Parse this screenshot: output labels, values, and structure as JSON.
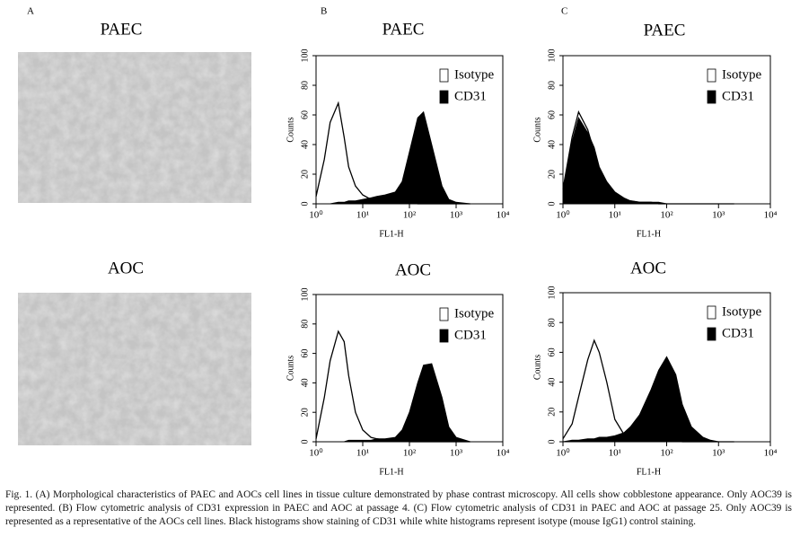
{
  "panel_labels": [
    "A",
    "B",
    "C"
  ],
  "micrographs": [
    {
      "title": "PAEC"
    },
    {
      "title": "AOC"
    }
  ],
  "chart_data": [
    {
      "type": "area",
      "title": "PAEC",
      "x_label": "FL1-H",
      "y_label": "Counts",
      "log_x": true,
      "xlim": [
        1,
        10000
      ],
      "ylim": [
        0,
        100
      ],
      "xticks": [
        {
          "value": 1,
          "label": "10⁰"
        },
        {
          "value": 10,
          "label": "10¹"
        },
        {
          "value": 100,
          "label": "10²"
        },
        {
          "value": 1000,
          "label": "10³"
        },
        {
          "value": 10000,
          "label": "10⁴"
        }
      ],
      "yticks": [
        0,
        20,
        40,
        60,
        80,
        100
      ],
      "legend": "upper right",
      "x": [
        1,
        1.5,
        2,
        3,
        4,
        5,
        7,
        10,
        15,
        20,
        30,
        50,
        70,
        100,
        150,
        200,
        300,
        500,
        700,
        1000,
        2000
      ],
      "series": [
        {
          "name": "Isotype",
          "color": "#ffffff",
          "values": [
            5,
            30,
            55,
            68,
            45,
            25,
            12,
            6,
            3,
            2,
            2,
            1,
            1,
            1,
            0,
            0,
            0,
            0,
            0,
            0,
            0
          ]
        },
        {
          "name": "CD31",
          "color": "#000000",
          "values": [
            0,
            0,
            0,
            1,
            1,
            2,
            2,
            3,
            4,
            5,
            6,
            8,
            15,
            35,
            58,
            62,
            40,
            12,
            3,
            1,
            0
          ]
        }
      ]
    },
    {
      "type": "area",
      "title": "AOC",
      "x_label": "FL1-H",
      "y_label": "Counts",
      "log_x": true,
      "xlim": [
        1,
        10000
      ],
      "ylim": [
        0,
        100
      ],
      "xticks": [
        {
          "value": 1,
          "label": "10⁰"
        },
        {
          "value": 10,
          "label": "10¹"
        },
        {
          "value": 100,
          "label": "10²"
        },
        {
          "value": 1000,
          "label": "10³"
        },
        {
          "value": 10000,
          "label": "10⁴"
        }
      ],
      "yticks": [
        0,
        20,
        40,
        60,
        80,
        100
      ],
      "legend": "upper right",
      "x": [
        1,
        1.5,
        2,
        3,
        4,
        5,
        7,
        10,
        15,
        20,
        30,
        50,
        70,
        100,
        150,
        200,
        300,
        500,
        700,
        1000,
        2000
      ],
      "series": [
        {
          "name": "Isotype",
          "color": "#ffffff",
          "values": [
            2,
            30,
            55,
            75,
            68,
            45,
            20,
            8,
            3,
            2,
            1,
            1,
            1,
            0,
            0,
            0,
            0,
            0,
            0,
            0,
            0
          ]
        },
        {
          "name": "CD31",
          "color": "#000000",
          "values": [
            0,
            0,
            0,
            0,
            0,
            1,
            1,
            1,
            1,
            2,
            2,
            3,
            8,
            20,
            40,
            52,
            53,
            30,
            10,
            3,
            0
          ]
        }
      ]
    },
    {
      "type": "area",
      "title": "PAEC",
      "x_label": "FL1-H",
      "y_label": "Counts",
      "log_x": true,
      "xlim": [
        1,
        10000
      ],
      "ylim": [
        0,
        100
      ],
      "xticks": [
        {
          "value": 1,
          "label": "10⁰"
        },
        {
          "value": 10,
          "label": "10¹"
        },
        {
          "value": 100,
          "label": "10²"
        },
        {
          "value": 1000,
          "label": "10³"
        },
        {
          "value": 10000,
          "label": "10⁴"
        }
      ],
      "yticks": [
        0,
        20,
        40,
        60,
        80,
        100
      ],
      "legend": "upper right",
      "x": [
        1,
        1.5,
        2,
        3,
        4,
        5,
        7,
        10,
        15,
        20,
        30,
        50,
        70,
        100,
        150,
        200,
        300,
        500,
        700,
        1000,
        2000
      ],
      "series": [
        {
          "name": "Isotype",
          "color": "#ffffff",
          "values": [
            10,
            45,
            62,
            50,
            35,
            22,
            12,
            6,
            3,
            2,
            1,
            1,
            0,
            0,
            0,
            0,
            0,
            0,
            0,
            0,
            0
          ]
        },
        {
          "name": "CD31",
          "color": "#000000",
          "values": [
            10,
            42,
            58,
            48,
            38,
            25,
            15,
            8,
            4,
            2,
            1,
            1,
            1,
            0,
            0,
            0,
            0,
            0,
            0,
            0,
            0
          ]
        }
      ]
    },
    {
      "type": "area",
      "title": "AOC",
      "x_label": "FL1-H",
      "y_label": "Counts",
      "log_x": true,
      "xlim": [
        1,
        10000
      ],
      "ylim": [
        0,
        100
      ],
      "xticks": [
        {
          "value": 1,
          "label": "10⁰"
        },
        {
          "value": 10,
          "label": "10¹"
        },
        {
          "value": 100,
          "label": "10²"
        },
        {
          "value": 1000,
          "label": "10³"
        },
        {
          "value": 10000,
          "label": "10⁴"
        }
      ],
      "yticks": [
        0,
        20,
        40,
        60,
        80,
        100
      ],
      "legend": "upper right",
      "x": [
        1,
        1.5,
        2,
        3,
        4,
        5,
        7,
        10,
        15,
        20,
        30,
        50,
        70,
        100,
        150,
        200,
        300,
        500,
        700,
        1000,
        2000
      ],
      "series": [
        {
          "name": "Isotype",
          "color": "#ffffff",
          "values": [
            2,
            12,
            30,
            55,
            68,
            60,
            40,
            15,
            5,
            3,
            2,
            2,
            2,
            1,
            1,
            0,
            0,
            0,
            0,
            0,
            0
          ]
        },
        {
          "name": "CD31",
          "color": "#000000",
          "values": [
            0,
            1,
            1,
            2,
            2,
            3,
            3,
            4,
            6,
            10,
            18,
            35,
            48,
            57,
            45,
            25,
            10,
            3,
            1,
            0,
            0
          ]
        }
      ]
    }
  ],
  "caption": "Fig. 1.  (A) Morphological characteristics of PAEC and AOCs cell lines in tissue culture demonstrated by phase contrast microscopy. All cells show cobblestone appearance. Only AOC39 is represented. (B) Flow cytometric analysis of CD31 expression in PAEC and AOC at passage 4. (C) Flow cytometric analysis of CD31 in PAEC and AOC at passage 25. Only AOC39 is represented as a representative of the AOCs cell lines. Black histograms show staining of CD31 while white histograms represent isotype (mouse IgG1) control staining."
}
